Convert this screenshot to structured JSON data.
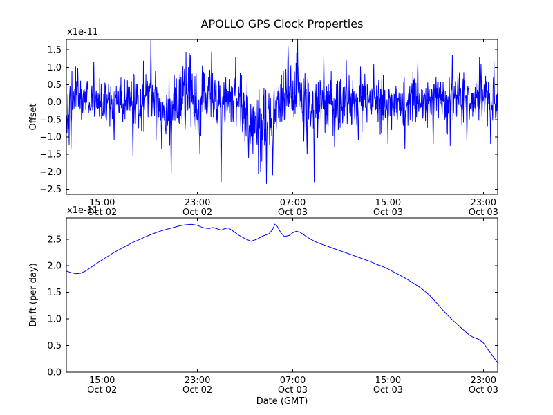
{
  "title": "APOLLO GPS Clock Properties",
  "figure": {
    "background": "#ffffff",
    "axes_color": "#000000"
  },
  "chart_data": [
    {
      "type": "line",
      "name": "offset-vs-time",
      "ylabel": "Offset",
      "offset_text": "x1e-11",
      "line_color": "#0000ff",
      "xlim": [
        0,
        36.2
      ],
      "ylim": [
        -2.65,
        1.8
      ],
      "yticks": [
        1.5,
        1.0,
        0.5,
        0.0,
        -0.5,
        -1.0,
        -1.5,
        -2.0,
        -2.5
      ],
      "xticks": [
        {
          "hour": 3,
          "time": "15:00",
          "date": "Oct 02"
        },
        {
          "hour": 11,
          "time": "23:00",
          "date": "Oct 02"
        },
        {
          "hour": 19,
          "time": "07:00",
          "date": "Oct 03"
        },
        {
          "hour": 27,
          "time": "15:00",
          "date": "Oct 03"
        },
        {
          "hour": 35,
          "time": "23:00",
          "date": "Oct 03"
        }
      ],
      "grid": false,
      "noise": {
        "seed": 42,
        "n_points": 1400,
        "clip": [
          -2.35,
          1.79
        ],
        "mean_anchors": [
          [
            0,
            -0.3
          ],
          [
            0.8,
            0.35
          ],
          [
            1.5,
            0.1
          ],
          [
            3,
            -0.05
          ],
          [
            5,
            0.0
          ],
          [
            7,
            0.15
          ],
          [
            8.5,
            -0.2
          ],
          [
            10,
            0.2
          ],
          [
            11,
            -0.1
          ],
          [
            12,
            0.25
          ],
          [
            13,
            -0.15
          ],
          [
            14,
            0.1
          ],
          [
            15,
            -0.3
          ],
          [
            16,
            -0.6
          ],
          [
            17,
            -0.75
          ],
          [
            17.6,
            -0.2
          ],
          [
            18.5,
            0.2
          ],
          [
            19.5,
            0.1
          ],
          [
            20.5,
            -0.3
          ],
          [
            21.5,
            0.1
          ],
          [
            22.5,
            -0.15
          ],
          [
            24,
            0.0
          ],
          [
            25,
            0.1
          ],
          [
            26,
            -0.1
          ],
          [
            27,
            0.05
          ],
          [
            28,
            -0.1
          ],
          [
            29,
            0.1
          ],
          [
            30,
            0.0
          ],
          [
            31,
            0.15
          ],
          [
            32,
            -0.05
          ],
          [
            33,
            0.1
          ],
          [
            34,
            0.0
          ],
          [
            35,
            0.15
          ],
          [
            36.2,
            0.0
          ]
        ],
        "std_anchors": [
          [
            0,
            0.35
          ],
          [
            2,
            0.3
          ],
          [
            4,
            0.3
          ],
          [
            6,
            0.4
          ],
          [
            8,
            0.45
          ],
          [
            10,
            0.45
          ],
          [
            12,
            0.45
          ],
          [
            14,
            0.4
          ],
          [
            16,
            0.5
          ],
          [
            18,
            0.45
          ],
          [
            20,
            0.5
          ],
          [
            22,
            0.4
          ],
          [
            24,
            0.35
          ],
          [
            26,
            0.35
          ],
          [
            28,
            0.35
          ],
          [
            30,
            0.35
          ],
          [
            32,
            0.4
          ],
          [
            34,
            0.35
          ],
          [
            36.2,
            0.35
          ]
        ],
        "spikes": [
          [
            0.4,
            -1.35
          ],
          [
            2.3,
            1.15
          ],
          [
            4.0,
            -1.1
          ],
          [
            5.6,
            -1.55
          ],
          [
            7.1,
            1.78
          ],
          [
            8.0,
            -1.35
          ],
          [
            8.8,
            -2.05
          ],
          [
            10.4,
            1.35
          ],
          [
            11.2,
            -1.5
          ],
          [
            12.2,
            1.45
          ],
          [
            13.0,
            -2.3
          ],
          [
            14.2,
            1.3
          ],
          [
            15.3,
            -1.6
          ],
          [
            16.3,
            -2.0
          ],
          [
            16.8,
            -2.35
          ],
          [
            17.3,
            -2.1
          ],
          [
            18.6,
            1.6
          ],
          [
            19.4,
            1.79
          ],
          [
            20.2,
            -1.5
          ],
          [
            20.8,
            -2.3
          ],
          [
            21.6,
            1.3
          ],
          [
            22.5,
            -1.3
          ],
          [
            23.5,
            1.2
          ],
          [
            24.5,
            -1.1
          ],
          [
            25.8,
            1.1
          ],
          [
            27.0,
            -1.2
          ],
          [
            28.4,
            -1.35
          ],
          [
            29.5,
            1.15
          ],
          [
            30.8,
            -1.2
          ],
          [
            32.4,
            1.35
          ],
          [
            33.6,
            -1.1
          ],
          [
            34.8,
            1.1
          ],
          [
            35.6,
            -1.2
          ],
          [
            35.9,
            1.15
          ]
        ]
      }
    },
    {
      "type": "line",
      "name": "drift-vs-time",
      "ylabel": "Drift (per day)",
      "xlabel": "Date (GMT)",
      "offset_text": "x1e-11",
      "line_color": "#0000ff",
      "xlim": [
        0,
        36.2
      ],
      "ylim": [
        0.0,
        2.9
      ],
      "yticks": [
        2.5,
        2.0,
        1.5,
        1.0,
        0.5,
        0.0
      ],
      "xticks": [
        {
          "hour": 3,
          "time": "15:00",
          "date": "Oct 02"
        },
        {
          "hour": 11,
          "time": "23:00",
          "date": "Oct 02"
        },
        {
          "hour": 19,
          "time": "07:00",
          "date": "Oct 03"
        },
        {
          "hour": 27,
          "time": "15:00",
          "date": "Oct 03"
        },
        {
          "hour": 35,
          "time": "23:00",
          "date": "Oct 03"
        }
      ],
      "grid": false,
      "points": [
        [
          0,
          1.9
        ],
        [
          0.4,
          1.87
        ],
        [
          0.8,
          1.85
        ],
        [
          1.2,
          1.86
        ],
        [
          1.6,
          1.9
        ],
        [
          2.0,
          1.96
        ],
        [
          2.5,
          2.04
        ],
        [
          3.0,
          2.11
        ],
        [
          3.5,
          2.18
        ],
        [
          4.0,
          2.25
        ],
        [
          4.5,
          2.31
        ],
        [
          5.0,
          2.37
        ],
        [
          5.5,
          2.43
        ],
        [
          6.0,
          2.48
        ],
        [
          6.5,
          2.53
        ],
        [
          7.0,
          2.58
        ],
        [
          7.5,
          2.62
        ],
        [
          8.0,
          2.66
        ],
        [
          8.5,
          2.69
        ],
        [
          9.0,
          2.72
        ],
        [
          9.5,
          2.75
        ],
        [
          10.0,
          2.77
        ],
        [
          10.5,
          2.78
        ],
        [
          11.0,
          2.76
        ],
        [
          11.3,
          2.73
        ],
        [
          11.6,
          2.71
        ],
        [
          12.0,
          2.7
        ],
        [
          12.3,
          2.72
        ],
        [
          12.6,
          2.7
        ],
        [
          13.0,
          2.67
        ],
        [
          13.3,
          2.7
        ],
        [
          13.6,
          2.71
        ],
        [
          14.0,
          2.65
        ],
        [
          14.5,
          2.57
        ],
        [
          15.0,
          2.51
        ],
        [
          15.5,
          2.46
        ],
        [
          16.0,
          2.5
        ],
        [
          16.5,
          2.56
        ],
        [
          17.0,
          2.6
        ],
        [
          17.3,
          2.68
        ],
        [
          17.5,
          2.78
        ],
        [
          17.7,
          2.74
        ],
        [
          18.0,
          2.62
        ],
        [
          18.3,
          2.55
        ],
        [
          18.7,
          2.57
        ],
        [
          19.0,
          2.62
        ],
        [
          19.3,
          2.65
        ],
        [
          19.6,
          2.63
        ],
        [
          20.0,
          2.57
        ],
        [
          20.5,
          2.5
        ],
        [
          21.0,
          2.44
        ],
        [
          21.5,
          2.4
        ],
        [
          22.0,
          2.36
        ],
        [
          22.5,
          2.32
        ],
        [
          23.0,
          2.28
        ],
        [
          23.5,
          2.24
        ],
        [
          24.0,
          2.2
        ],
        [
          24.5,
          2.16
        ],
        [
          25.0,
          2.12
        ],
        [
          25.5,
          2.08
        ],
        [
          26.0,
          2.03
        ],
        [
          26.5,
          1.99
        ],
        [
          27.0,
          1.94
        ],
        [
          27.5,
          1.88
        ],
        [
          28.0,
          1.82
        ],
        [
          28.5,
          1.76
        ],
        [
          29.0,
          1.69
        ],
        [
          29.5,
          1.62
        ],
        [
          30.0,
          1.54
        ],
        [
          30.5,
          1.44
        ],
        [
          31.0,
          1.32
        ],
        [
          31.5,
          1.19
        ],
        [
          32.0,
          1.07
        ],
        [
          32.5,
          0.96
        ],
        [
          33.0,
          0.86
        ],
        [
          33.4,
          0.78
        ],
        [
          33.8,
          0.7
        ],
        [
          34.2,
          0.65
        ],
        [
          34.6,
          0.62
        ],
        [
          35.0,
          0.55
        ],
        [
          35.4,
          0.42
        ],
        [
          35.8,
          0.3
        ],
        [
          36.2,
          0.17
        ]
      ]
    }
  ]
}
